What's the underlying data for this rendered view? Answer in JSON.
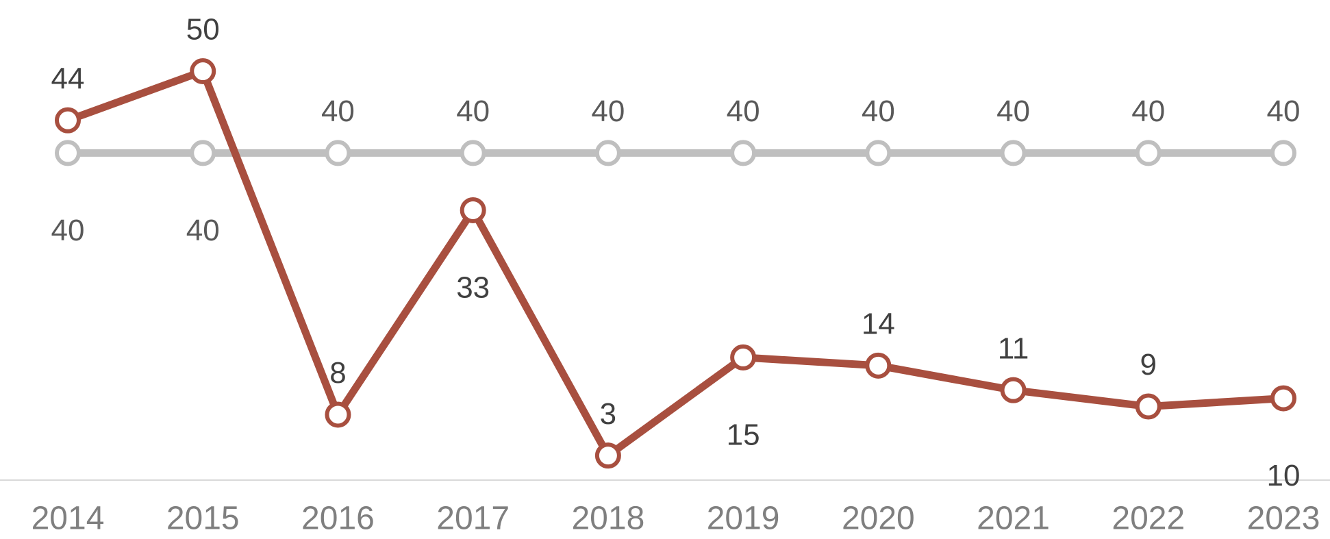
{
  "chart_data": {
    "type": "line",
    "categories": [
      "2014",
      "2015",
      "2016",
      "2017",
      "2018",
      "2019",
      "2020",
      "2021",
      "2022",
      "2023"
    ],
    "series": [
      {
        "color": "#bfbfbf",
        "values": [
          40,
          40,
          40,
          40,
          40,
          40,
          40,
          40,
          40,
          40
        ]
      },
      {
        "color": "#a84f3f",
        "values": [
          44,
          50,
          8,
          33,
          3,
          15,
          14,
          11,
          9,
          10
        ]
      }
    ],
    "ylim": [
      0,
      50
    ]
  }
}
